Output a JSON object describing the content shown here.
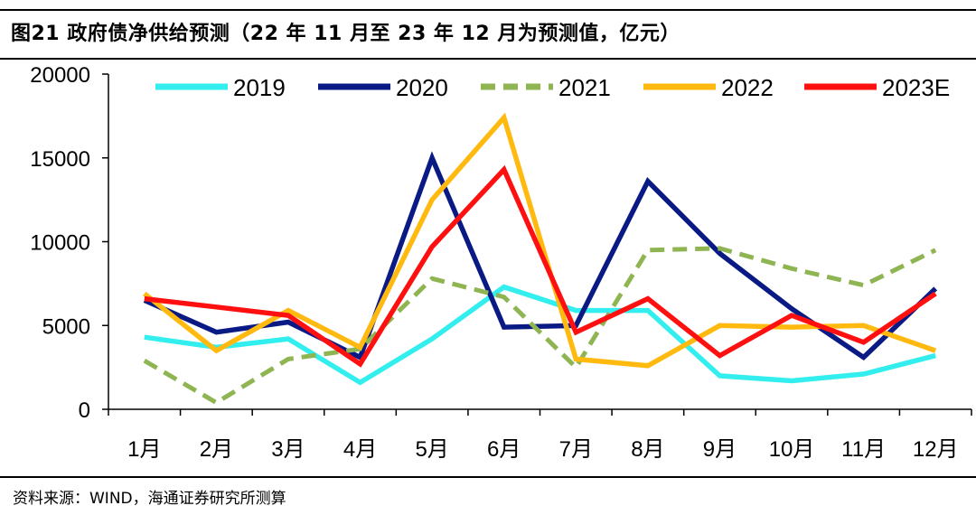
{
  "header": {
    "title": "图21 政府债净供给预测（22 年 11 月至 23 年 12 月为预测值，亿元）"
  },
  "footer": {
    "source": "资料来源：WIND，海通证券研究所测算"
  },
  "chart_data": {
    "type": "line",
    "title": "图21 政府债净供给预测（22 年 11 月至 23 年 12 月为预测值，亿元）",
    "xlabel": "",
    "ylabel": "",
    "categories": [
      "1月",
      "2月",
      "3月",
      "4月",
      "5月",
      "6月",
      "7月",
      "8月",
      "9月",
      "10月",
      "11月",
      "12月"
    ],
    "ylim": [
      0,
      20000
    ],
    "yticks": [
      0,
      5000,
      10000,
      15000,
      20000
    ],
    "legend_position": "top",
    "grid": false,
    "series": [
      {
        "name": "2019",
        "color": "#33eeee",
        "dash": "solid",
        "values": [
          4300,
          3700,
          4200,
          1600,
          4200,
          7300,
          5900,
          5900,
          2000,
          1700,
          2100,
          3200
        ]
      },
      {
        "name": "2020",
        "color": "#0a1a85",
        "dash": "solid",
        "values": [
          6500,
          4600,
          5200,
          3100,
          15000,
          4900,
          5000,
          13600,
          9300,
          6000,
          3100,
          7200
        ]
      },
      {
        "name": "2021",
        "color": "#8fb552",
        "dash": "dashed",
        "values": [
          2900,
          400,
          3000,
          3600,
          7800,
          6700,
          2500,
          9500,
          9600,
          8400,
          7400,
          9500
        ]
      },
      {
        "name": "2022",
        "color": "#ffb90f",
        "dash": "solid",
        "values": [
          6900,
          3500,
          5900,
          3700,
          12500,
          17400,
          3000,
          2600,
          5000,
          4900,
          5000,
          3500
        ]
      },
      {
        "name": "2023E",
        "color": "#ff1010",
        "dash": "solid",
        "values": [
          6600,
          6100,
          5600,
          2700,
          9700,
          14300,
          4600,
          6600,
          3200,
          5600,
          4000,
          6900
        ]
      }
    ]
  }
}
